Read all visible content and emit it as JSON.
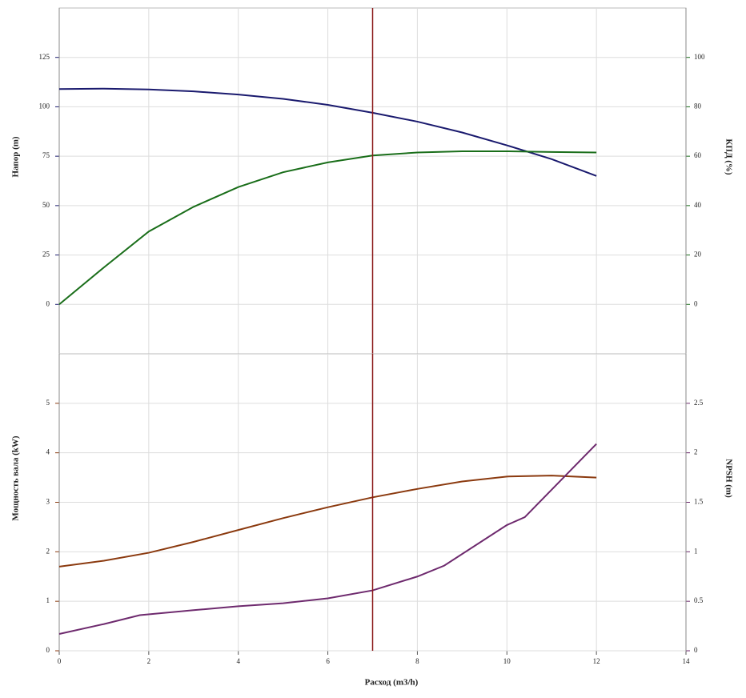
{
  "chart_data": [
    {
      "type": "line",
      "ylabel": "Напор (m)",
      "ylabel_color": "#1a1a6e",
      "y2label": "КПД (%)",
      "y2label_color": "#1a6e1a",
      "xlim": [
        0,
        14
      ],
      "xticks": [
        0,
        2,
        4,
        6,
        8,
        10,
        12,
        14
      ],
      "vline": 7,
      "vline_color": "#8b1a1a",
      "ylim": [
        -25,
        150
      ],
      "yticks": [
        0,
        25,
        50,
        75,
        100,
        125
      ],
      "y2lim": [
        -20,
        120
      ],
      "y2ticks": [
        0,
        20,
        40,
        60,
        80,
        100
      ],
      "grid": true,
      "series": [
        {
          "name": "Напор",
          "color": "#1a1a6e",
          "x": [
            0,
            1,
            2,
            3,
            4,
            5,
            6,
            7,
            8,
            9,
            10,
            11,
            12
          ],
          "values": [
            109,
            109.2,
            108.8,
            107.8,
            106.2,
            104,
            101,
            97,
            92.5,
            87,
            80.5,
            73.5,
            65
          ]
        },
        {
          "name": "КПД",
          "color": "#1a6e1a",
          "axis": "y2",
          "x": [
            0,
            1,
            2,
            3,
            4,
            5,
            6,
            7,
            8,
            9,
            10,
            11,
            12
          ],
          "values": [
            0,
            15,
            29.5,
            39.5,
            47.5,
            53.5,
            57.5,
            60.3,
            61.5,
            62,
            62,
            61.7,
            61.5
          ]
        }
      ]
    },
    {
      "type": "line",
      "xlabel": "Расход (m3/h)",
      "ylabel": "Мощность вала (kW)",
      "ylabel_color": "#8b3a0f",
      "y2label": "NPSH (m)",
      "y2label_color": "#6e2a6e",
      "xlim": [
        0,
        14
      ],
      "xticks": [
        0,
        2,
        4,
        6,
        8,
        10,
        12,
        14
      ],
      "vline": 7,
      "vline_color": "#8b1a1a",
      "ylim": [
        0,
        6
      ],
      "yticks": [
        0,
        1,
        2,
        3,
        4,
        5
      ],
      "y2lim": [
        0,
        3
      ],
      "y2ticks": [
        0,
        0.5,
        1,
        1.5,
        2,
        2.5
      ],
      "grid": true,
      "series": [
        {
          "name": "Мощность вала",
          "color": "#8b3a0f",
          "x": [
            0,
            1,
            2,
            3,
            4,
            5,
            6,
            7,
            8,
            9,
            10,
            11,
            12
          ],
          "values": [
            1.7,
            1.82,
            1.98,
            2.2,
            2.44,
            2.68,
            2.9,
            3.1,
            3.27,
            3.42,
            3.52,
            3.54,
            3.5
          ]
        },
        {
          "name": "NPSH",
          "color": "#6e2a6e",
          "axis": "y2",
          "x": [
            0,
            1,
            1.8,
            3,
            4,
            5,
            6,
            7,
            8,
            8.6,
            10,
            10.4,
            12
          ],
          "values": [
            0.17,
            0.27,
            0.36,
            0.41,
            0.45,
            0.48,
            0.53,
            0.61,
            0.75,
            0.86,
            1.27,
            1.35,
            2.09
          ]
        }
      ]
    }
  ]
}
